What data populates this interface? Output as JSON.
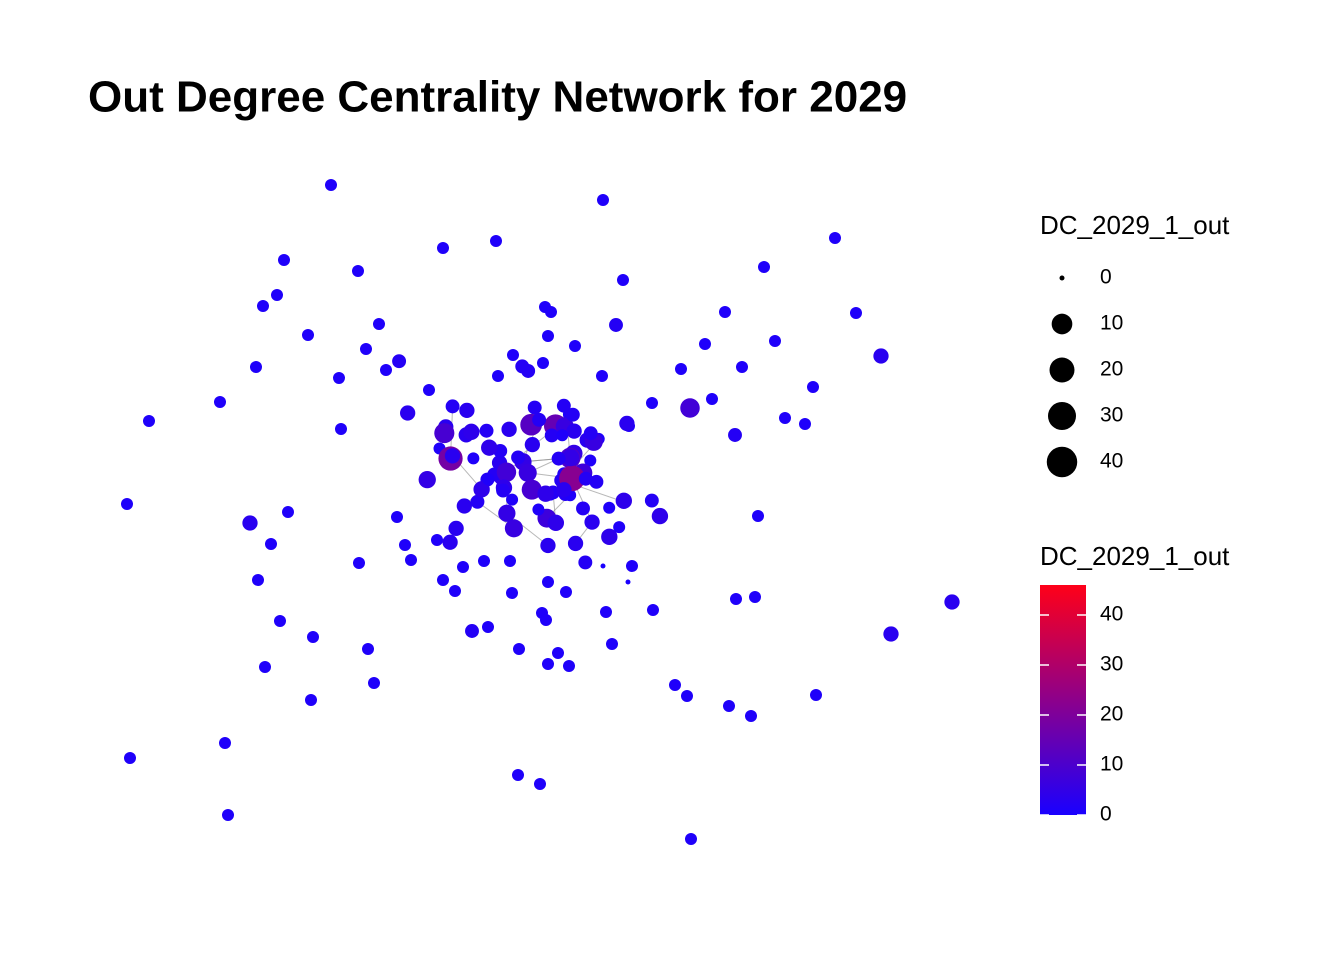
{
  "chart_data": {
    "type": "network",
    "title": "Out Degree Centrality Network for 2029",
    "values": [
      1,
      1,
      1,
      1,
      1,
      1,
      1,
      1,
      1,
      1,
      1,
      1,
      1,
      1,
      1,
      1,
      2,
      1,
      1,
      1,
      1,
      1,
      1,
      1,
      3,
      1,
      1,
      1,
      1,
      1,
      1,
      1,
      1,
      1,
      1,
      1,
      1,
      1,
      8,
      1,
      1,
      1,
      1,
      1,
      2,
      1,
      3,
      1,
      1,
      1,
      1,
      1,
      1,
      1,
      1,
      1,
      1,
      1,
      1,
      1,
      1,
      1,
      1,
      1,
      1,
      3,
      1,
      1,
      1,
      1,
      1,
      1,
      1,
      2,
      1,
      3,
      1,
      1,
      1,
      1,
      1,
      1,
      1,
      1,
      1,
      1,
      1,
      1,
      1,
      1,
      1,
      1,
      1,
      1,
      1,
      1,
      1,
      0,
      0,
      3,
      2,
      5,
      1,
      4,
      2,
      7,
      3,
      1,
      2,
      6,
      2,
      3,
      9,
      1,
      4,
      2,
      3,
      5,
      2,
      1,
      12,
      3,
      2,
      4,
      1,
      2,
      6,
      3,
      2,
      8,
      1,
      2,
      3,
      4,
      2,
      15,
      1,
      3,
      2,
      5,
      2,
      3,
      1,
      4,
      2,
      10,
      3,
      2,
      1,
      6,
      2,
      3,
      4,
      2,
      1,
      3,
      18,
      2,
      4,
      3,
      1,
      2,
      5,
      3,
      2,
      7,
      1,
      4,
      2,
      3,
      2,
      6,
      1,
      3,
      2,
      4,
      22,
      2,
      3,
      5,
      1,
      2,
      3,
      4,
      2,
      9,
      1,
      3,
      2
    ],
    "size_legend": {
      "title": "DC_2029_1_out",
      "breaks": [
        0,
        10,
        20,
        30,
        40
      ]
    },
    "color_legend": {
      "title": "DC_2029_1_out",
      "lim": [
        0,
        46
      ],
      "ticks": [
        0,
        10,
        20,
        30,
        40
      ],
      "colors": [
        "#1a00ff",
        "#ff0018"
      ]
    }
  }
}
